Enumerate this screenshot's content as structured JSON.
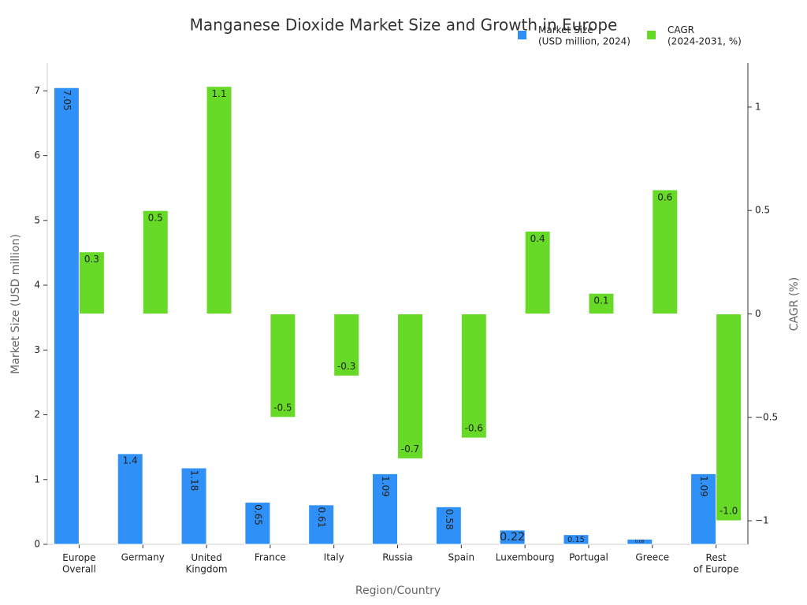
{
  "chart_data": {
    "type": "bar",
    "title": "Manganese Dioxide Market Size and Growth in Europe",
    "x_label": "Region/Country",
    "y_label": "Market Size (USD million)",
    "y2_label": "CAGR (%)",
    "categories": [
      "Europe\nOverall",
      "Germany",
      "United\nKingdom",
      "France",
      "Italy",
      "Russia",
      "Spain",
      "Luxembourg",
      "Portugal",
      "Greece",
      "Rest\nof Europe"
    ],
    "series": [
      {
        "name": "Market Size\n(USD million, 2024)",
        "color": "#2f91f7",
        "axis": "y",
        "values": [
          7.05,
          1.4,
          1.18,
          0.65,
          0.61,
          1.09,
          0.58,
          0.22,
          0.15,
          0.08,
          1.09
        ]
      },
      {
        "name": "CAGR\n(2024-2031, %)",
        "color": "#66da26",
        "axis": "y2",
        "values": [
          0.3,
          0.5,
          1.1,
          -0.5,
          -0.3,
          -0.7,
          -0.6,
          0.4,
          0.1,
          0.6,
          -1.0
        ],
        "value_labels": [
          "0.3",
          "0.5",
          "1.1",
          "-0.5",
          "-0.3",
          "-0.7",
          "-0.6",
          "0.4",
          "0.1",
          "0.6",
          "-1.0"
        ]
      }
    ],
    "ylim": [
      0,
      7.43
    ],
    "yticks": [
      0,
      1,
      2,
      3,
      4,
      5,
      6,
      7
    ],
    "y2lim": [
      -1.114,
      1.213
    ],
    "y2ticks": [
      {
        "value": -1,
        "label": "−1"
      },
      {
        "value": -0.5,
        "label": "−0.5"
      },
      0,
      0.5,
      1
    ],
    "legend": "top-right",
    "grid": false
  }
}
